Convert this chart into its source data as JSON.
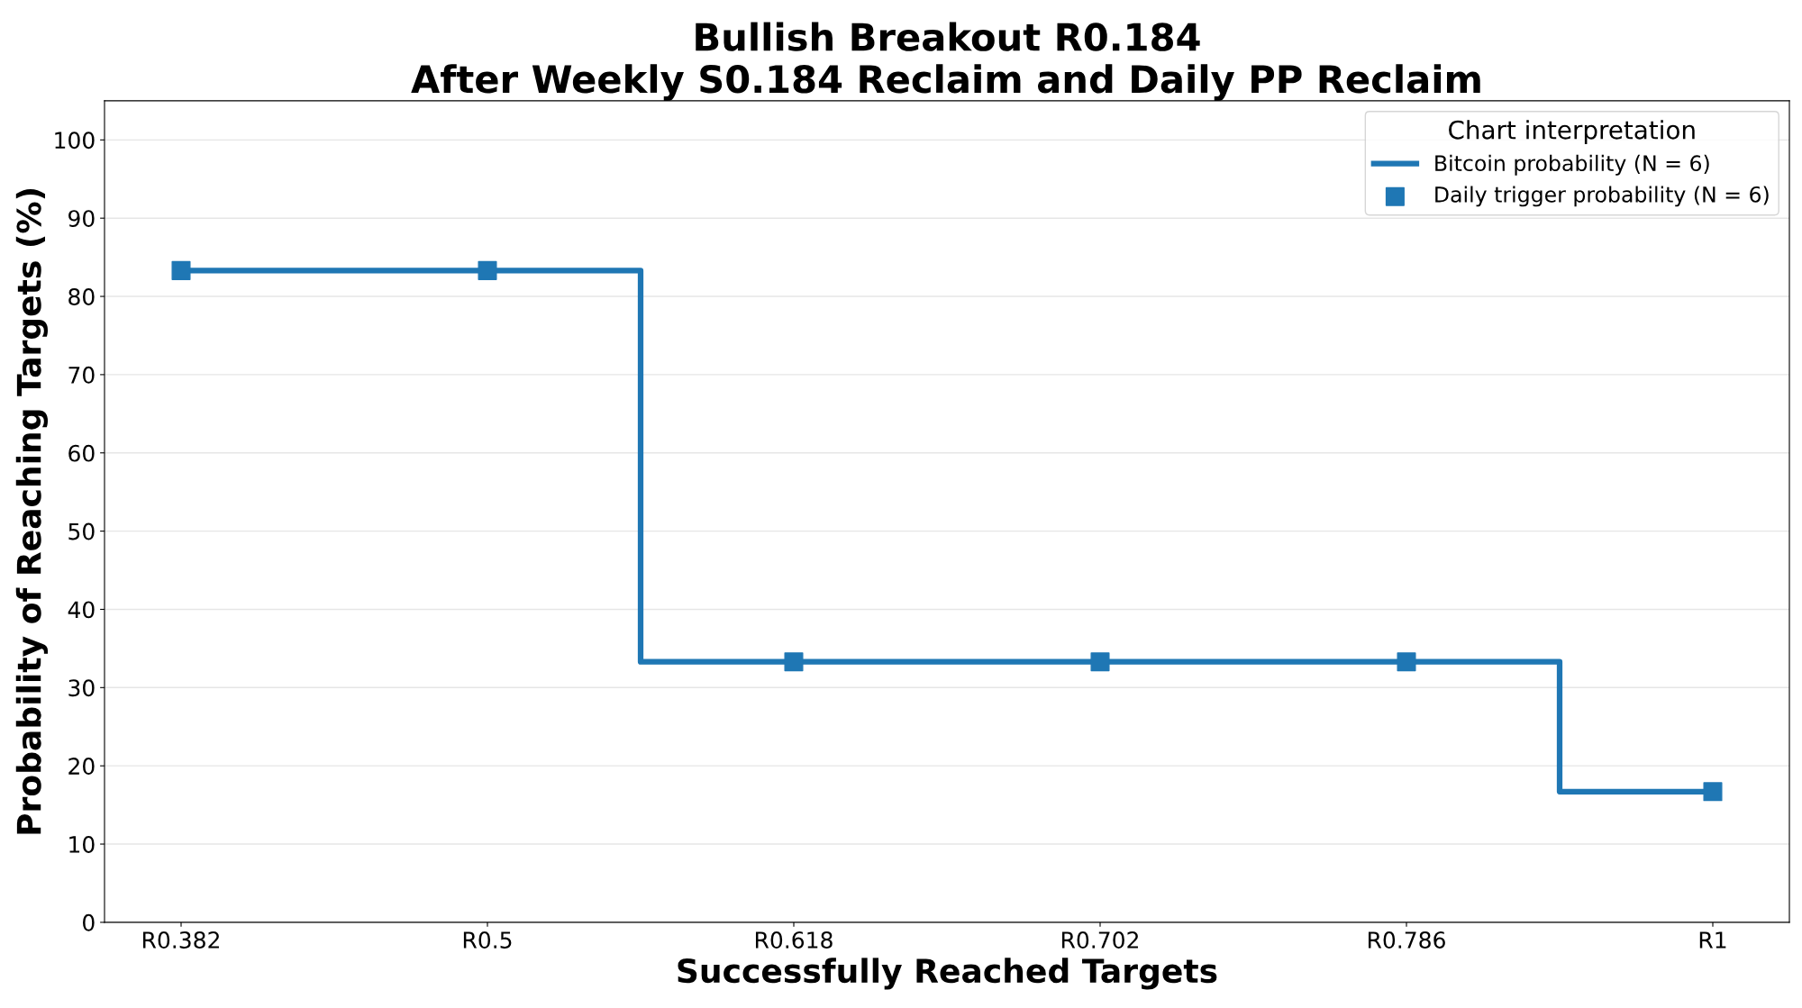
{
  "chart_data": {
    "type": "step",
    "title": "Bullish Breakout R0.184\nAfter Weekly S0.184 Reclaim and Daily PP Reclaim",
    "xlabel": "Successfully Reached Targets",
    "ylabel": "Probability of Reaching Targets (%)",
    "legend_title": "Chart interpretation",
    "categories": [
      "R0.382",
      "R0.5",
      "R0.618",
      "R0.702",
      "R0.786",
      "R1"
    ],
    "series": [
      {
        "name": "Bitcoin probability (N = 6)",
        "color": "#1f77b4",
        "values": [
          83.3,
          83.3,
          33.3,
          33.3,
          33.3,
          16.7
        ]
      },
      {
        "name": "Daily trigger probability (N = 6)",
        "type": "scatter",
        "color": "#1f77b4",
        "marker": "square",
        "values": [
          83.3,
          83.3,
          33.3,
          33.3,
          33.3,
          16.7
        ]
      }
    ],
    "ylim": [
      0,
      105
    ],
    "yticks": [
      0,
      10,
      20,
      30,
      40,
      50,
      60,
      70,
      80,
      90,
      100
    ],
    "grid": "y",
    "legend": "top right"
  }
}
